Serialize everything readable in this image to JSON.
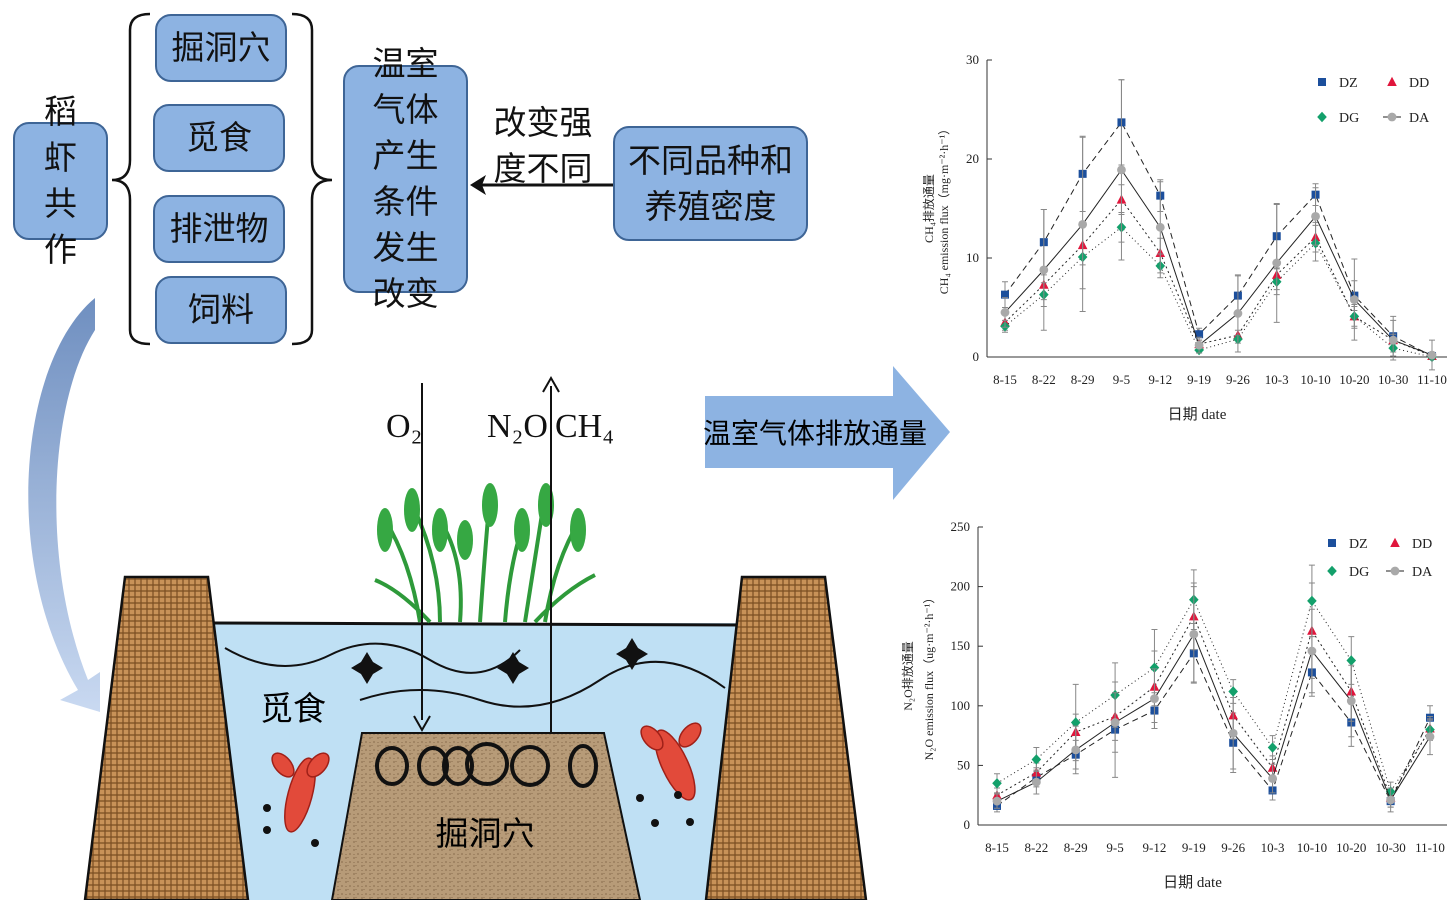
{
  "diagram": {
    "source": "稻虾共作",
    "behaviors": [
      "掘洞穴",
      "觅食",
      "排泄物",
      "饲料"
    ],
    "effect": "温室气体产生条件发生改变",
    "arrow_label": "改变强度不同",
    "factor": "不同品种和养殖密度",
    "flow_label": "温室气体排放通量",
    "gases": [
      "O₂",
      "N₂O",
      "CH₄"
    ],
    "scene_labels": [
      "觅食",
      "掘洞穴"
    ]
  },
  "charts": [
    {
      "type": "line",
      "ylabel": [
        "CH₄排放通量",
        "CH₄ emission flux（mg·m⁻²·h⁻¹）"
      ],
      "xlabel": "日期 date",
      "categories": [
        "8-15",
        "8-22",
        "8-29",
        "9-5",
        "9-12",
        "9-19",
        "9-26",
        "10-3",
        "10-10",
        "10-20",
        "10-30",
        "11-10"
      ],
      "ylim": [
        0,
        30
      ],
      "yticks": [
        0,
        10,
        20,
        30
      ],
      "series": [
        {
          "name": "DZ",
          "color": "#1c4f9c",
          "marker": "square",
          "dash": "6,4",
          "values": [
            6.3,
            11.6,
            18.5,
            23.7,
            16.3,
            2.3,
            6.2,
            12.2,
            16.4,
            6.2,
            2.1,
            0.1
          ],
          "errors": [
            1.3,
            3.3,
            3.8,
            4.3,
            1.6,
            0.6,
            2.0,
            3.2,
            1.1,
            1.5,
            2.0,
            0.3
          ]
        },
        {
          "name": "DD",
          "color": "#e0163c",
          "marker": "triangle",
          "dash": "2,3",
          "values": [
            3.5,
            7.3,
            11.3,
            15.9,
            10.5,
            1.3,
            2.2,
            8.3,
            12.1,
            4.1,
            1.7,
            0.1
          ],
          "errors": [
            0.8,
            1.5,
            2.0,
            1.5,
            1.5,
            0.4,
            0.5,
            1.5,
            1.5,
            1.2,
            0.6,
            0.2
          ]
        },
        {
          "name": "DG",
          "color": "#13a06b",
          "marker": "diamond",
          "dash": "1,3",
          "values": [
            3.1,
            6.3,
            10.1,
            13.1,
            9.2,
            0.7,
            1.8,
            7.6,
            11.5,
            4.1,
            0.9,
            0.0
          ],
          "errors": [
            0.6,
            1.2,
            3.2,
            1.5,
            1.2,
            0.3,
            0.4,
            1.3,
            1.8,
            1.0,
            0.4,
            0.1
          ]
        },
        {
          "name": "DA",
          "color": "#a9a9a9",
          "marker": "circle",
          "dash": "",
          "values": [
            4.5,
            8.8,
            13.4,
            18.9,
            13.1,
            1.2,
            4.4,
            9.5,
            14.2,
            5.8,
            1.7,
            0.2
          ],
          "errors": [
            1.5,
            6.1,
            8.8,
            9.1,
            4.6,
            0.8,
            3.9,
            6.0,
            2.9,
            4.1,
            2.0,
            1.5
          ]
        }
      ]
    },
    {
      "type": "line",
      "ylabel": [
        "N₂O排放通量",
        "N₂O emission flux（ug·m⁻²·h⁻¹）"
      ],
      "xlabel": "日期 date",
      "categories": [
        "8-15",
        "8-22",
        "8-29",
        "9-5",
        "9-12",
        "9-19",
        "9-26",
        "10-3",
        "10-10",
        "10-20",
        "10-30",
        "11-10"
      ],
      "ylim": [
        0,
        250
      ],
      "yticks": [
        0,
        50,
        100,
        150,
        200,
        250
      ],
      "series": [
        {
          "name": "DZ",
          "color": "#1c4f9c",
          "marker": "square",
          "dash": "6,4",
          "values": [
            16,
            40,
            59,
            80,
            96,
            144,
            69,
            29,
            128,
            86,
            20,
            90
          ],
          "errors": [
            5,
            8,
            12,
            40,
            15,
            25,
            25,
            8,
            20,
            20,
            5,
            10
          ]
        },
        {
          "name": "DD",
          "color": "#e0163c",
          "marker": "triangle",
          "dash": "2,3",
          "values": [
            25,
            44,
            78,
            91,
            116,
            175,
            92,
            48,
            163,
            112,
            23,
            81
          ],
          "errors": [
            6,
            8,
            15,
            20,
            30,
            28,
            20,
            10,
            40,
            25,
            8,
            10
          ]
        },
        {
          "name": "DG",
          "color": "#13a06b",
          "marker": "diamond",
          "dash": "1,3",
          "values": [
            35,
            55,
            86,
            109,
            132,
            189,
            112,
            65,
            188,
            138,
            28,
            80
          ],
          "errors": [
            8,
            10,
            32,
            27,
            32,
            25,
            10,
            10,
            30,
            20,
            8,
            8
          ]
        },
        {
          "name": "DA",
          "color": "#a9a9a9",
          "marker": "circle",
          "dash": "",
          "values": [
            20,
            36,
            63,
            86,
            106,
            160,
            77,
            39,
            146,
            104,
            21,
            74
          ],
          "errors": [
            6,
            10,
            20,
            25,
            25,
            40,
            30,
            12,
            35,
            30,
            10,
            15
          ]
        }
      ]
    }
  ]
}
